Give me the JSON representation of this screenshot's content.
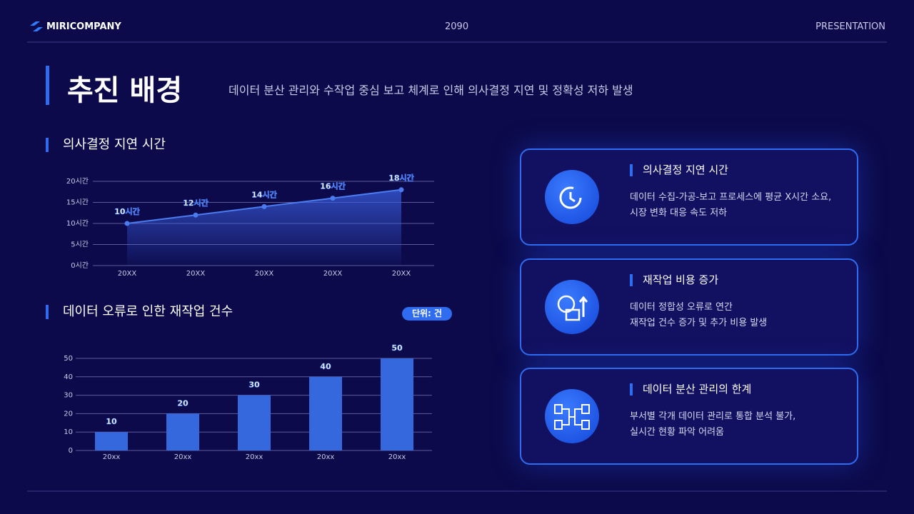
{
  "header": {
    "brand": "MIRICOMPANY",
    "year": "2090",
    "label": "PRESENTATION"
  },
  "title": "추진 배경",
  "subtitle": "데이터 분산 관리와 수작업 중심 보고 체계로 인해 의사결정 지연 및 정확성 저하 발생",
  "chart_data": [
    {
      "type": "line",
      "title": "의사결정 지연 시간",
      "categories": [
        "20XX",
        "20XX",
        "20XX",
        "20XX",
        "20XX"
      ],
      "values": [
        10,
        12,
        14,
        16,
        18
      ],
      "value_labels": [
        "10시간",
        "12시간",
        "14시간",
        "16시간",
        "18시간"
      ],
      "color": "#4a7cf0",
      "ylim": [
        0,
        20
      ],
      "yticks": [
        {
          "value": 0,
          "label": "0시간"
        },
        {
          "value": 5,
          "label": "5시간"
        },
        {
          "value": 10,
          "label": "10시간"
        },
        {
          "value": 15,
          "label": "15시간"
        },
        {
          "value": 20,
          "label": "20시간"
        }
      ],
      "grid": true
    },
    {
      "type": "bar",
      "title": "데이터 오류로 인한 재작업 건수",
      "unit": "단위: 건",
      "categories": [
        "20xx",
        "20xx",
        "20xx",
        "20xx",
        "20xx"
      ],
      "values": [
        10,
        20,
        30,
        40,
        50
      ],
      "color": "#3568dc",
      "ylim": [
        0,
        50
      ],
      "yticks": [
        0,
        10,
        20,
        30,
        40,
        50
      ],
      "grid": true
    }
  ],
  "cards": [
    {
      "title": "의사결정 지연 시간",
      "lines": [
        "데이터 수집-가공-보고 프로세스에 평균 X시간 소요,",
        "시장 변화 대응 속도 저하"
      ]
    },
    {
      "title": "재작업 비용 증가",
      "lines": [
        "데이터 정합성 오류로 연간",
        "재작업 건수 증가 및 추가 비용 발생"
      ]
    },
    {
      "title": "데이터 분산 관리의 한계",
      "lines": [
        "부서별 각개 데이터 관리로 통합 분석 불가,",
        "실시간 현황 파악 어려움"
      ]
    }
  ]
}
